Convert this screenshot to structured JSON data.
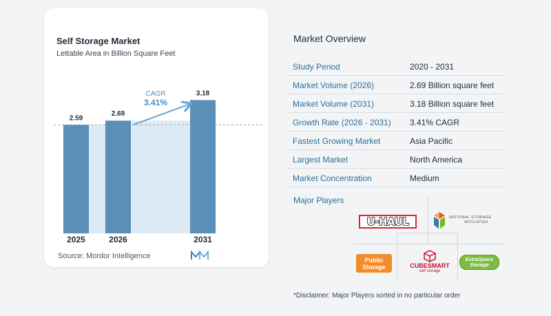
{
  "chart": {
    "title": "Self Storage Market",
    "subtitle": "Lettable Area in Billion Square Feet",
    "cagr_label": "CAGR",
    "cagr_value": "3.41%",
    "source": "Source:  Mordor Intelligence"
  },
  "chart_data": {
    "type": "bar",
    "title": "Self Storage Market",
    "subtitle": "Lettable Area in Billion Square Feet",
    "categories": [
      "2025",
      "2026",
      "2031"
    ],
    "values": [
      2.59,
      2.69,
      3.18
    ],
    "value_labels": [
      "2.59",
      "2.69",
      "3.18"
    ],
    "ylim": [
      0,
      3.4
    ],
    "grid": false,
    "annotation": {
      "label": "CAGR",
      "value": "3.41%"
    },
    "colors": {
      "bar": "#5a8fb8",
      "shade": "#dde9f3",
      "arrow": "#6aa8d4",
      "dashed": "#9ca3af"
    }
  },
  "overview": {
    "title": "Market Overview",
    "rows": [
      {
        "label": "Study Period",
        "value": "2020 - 2031"
      },
      {
        "label": "Market Volume (2026)",
        "value": "2.69 Billion square feet"
      },
      {
        "label": "Market Volume (2031)",
        "value": "3.18 Billion square feet"
      },
      {
        "label": "Growth Rate (2026 - 2031)",
        "value": "3.41% CAGR"
      },
      {
        "label": "Fastest Growing Market",
        "value": "Asia Pacific"
      },
      {
        "label": "Largest Market",
        "value": "North America"
      },
      {
        "label": "Market Concentration",
        "value": "Medium"
      }
    ],
    "players_title": "Major Players",
    "disclaimer": "*Disclaimer: Major Players sorted in no particular order"
  },
  "players": {
    "uhaul": "U-HAUL",
    "nsa_line1": "NATIONAL STORAGE",
    "nsa_line2": "AFFILIATED",
    "public_storage": "Public Storage",
    "cubesmart": "CUBESMART",
    "cubesmart_sub": "self storage",
    "extraspace": "ExtraSpace Storage"
  },
  "colors": {
    "accent": "#2a6f97",
    "row_divider": "#d7dde3"
  }
}
